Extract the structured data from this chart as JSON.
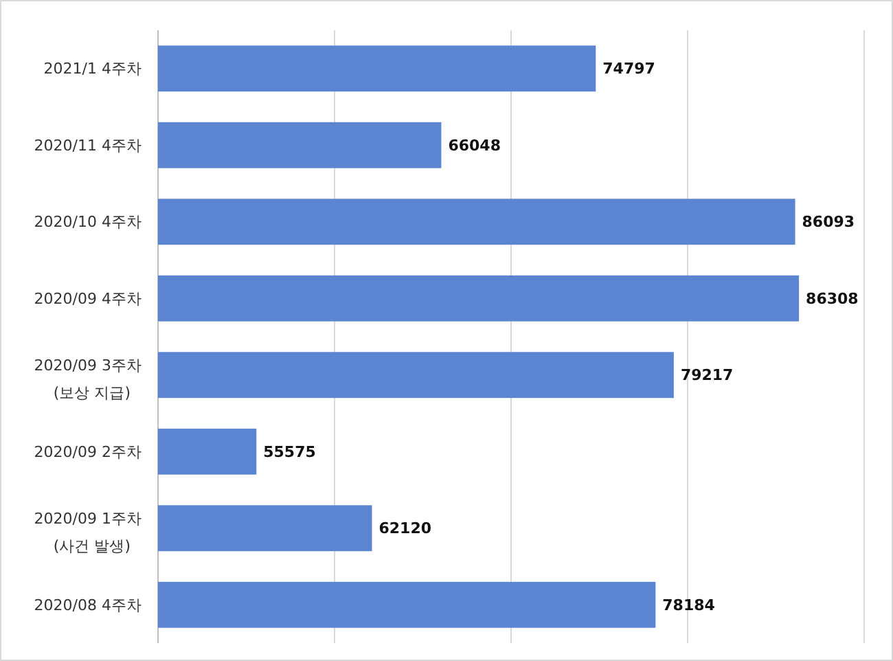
{
  "chart_data": {
    "type": "bar",
    "orientation": "horizontal",
    "categories": [
      "2021/1 4주차",
      "2020/11 4주차",
      "2020/10 4주차",
      "2020/09 4주차",
      "2020/09 3주차\n(보상 지급)",
      "2020/09 2주차",
      "2020/09 1주차\n(사건 발생)",
      "2020/08 4주차"
    ],
    "values": [
      74797,
      66048,
      86093,
      86308,
      79217,
      55575,
      62120,
      78184
    ],
    "color": "#5b85d0",
    "xlim": [
      50000,
      90000
    ],
    "xticks": [
      {
        "value": 60000,
        "label": null
      },
      {
        "value": 70000,
        "label": null
      },
      {
        "value": 80000,
        "label": null
      },
      {
        "value": 90000,
        "label": null
      }
    ],
    "grid": "x",
    "tick_labels": false,
    "data_labels": true
  }
}
